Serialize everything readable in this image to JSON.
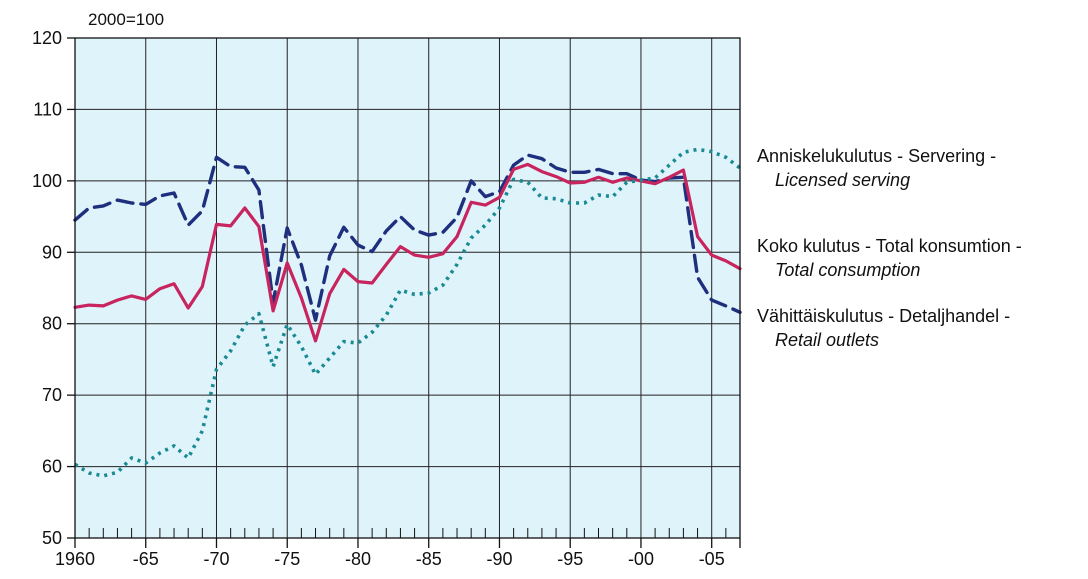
{
  "chart_data": {
    "type": "line",
    "unit_label": "2000=100",
    "ylim": [
      50,
      120
    ],
    "yticks": [
      50,
      60,
      70,
      80,
      90,
      100,
      110,
      120
    ],
    "xlim": [
      1960,
      2007
    ],
    "xticks": [
      {
        "year": 1960,
        "label": "1960"
      },
      {
        "year": 1965,
        "label": "-65"
      },
      {
        "year": 1970,
        "label": "-70"
      },
      {
        "year": 1975,
        "label": "-75"
      },
      {
        "year": 1980,
        "label": "-80"
      },
      {
        "year": 1985,
        "label": "-85"
      },
      {
        "year": 1990,
        "label": "-90"
      },
      {
        "year": 1995,
        "label": "-95"
      },
      {
        "year": 2000,
        "label": "-00"
      },
      {
        "year": 2005,
        "label": "-05"
      }
    ],
    "grid": true,
    "plot_background": "#dff3fb",
    "x": [
      1960,
      1961,
      1962,
      1963,
      1964,
      1965,
      1966,
      1967,
      1968,
      1969,
      1970,
      1971,
      1972,
      1973,
      1974,
      1975,
      1976,
      1977,
      1978,
      1979,
      1980,
      1981,
      1982,
      1983,
      1984,
      1985,
      1986,
      1987,
      1988,
      1989,
      1990,
      1991,
      1992,
      1993,
      1994,
      1995,
      1996,
      1997,
      1998,
      1999,
      2000,
      2001,
      2002,
      2003,
      2004,
      2005,
      2006,
      2007
    ],
    "series": [
      {
        "name": "Anniskelukulutus - Servering -",
        "name_en": "Licensed serving",
        "color": "#1e2f7d",
        "style": "dashed",
        "values": [
          94.5,
          96.2,
          96.5,
          97.3,
          96.9,
          96.7,
          97.9,
          98.3,
          93.8,
          95.8,
          103.3,
          102.0,
          101.9,
          98.7,
          83.0,
          93.4,
          88.2,
          80.5,
          89.5,
          93.5,
          91.0,
          90.1,
          93.0,
          95.0,
          93.1,
          92.4,
          92.8,
          94.9,
          100.0,
          97.8,
          98.5,
          102.2,
          103.6,
          103.1,
          101.8,
          101.2,
          101.2,
          101.6,
          101.0,
          101.0,
          100.1,
          99.9,
          100.4,
          100.5,
          86.5,
          83.3,
          82.5,
          81.6
        ]
      },
      {
        "name": "Koko kulutus - Total konsumtion -",
        "name_en": "Total consumption",
        "color": "#c8245e",
        "style": "solid",
        "values": [
          82.3,
          82.6,
          82.5,
          83.3,
          83.9,
          83.4,
          84.9,
          85.6,
          82.2,
          85.2,
          93.9,
          93.7,
          96.2,
          93.6,
          81.8,
          88.5,
          83.6,
          77.6,
          84.2,
          87.6,
          85.9,
          85.7,
          88.3,
          90.8,
          89.6,
          89.3,
          89.8,
          92.2,
          97.0,
          96.6,
          97.7,
          101.6,
          102.3,
          101.3,
          100.6,
          99.7,
          99.8,
          100.5,
          99.8,
          100.4,
          100.0,
          99.6,
          100.5,
          101.5,
          92.2,
          89.6,
          88.8,
          87.7
        ]
      },
      {
        "name": "Vähittäiskulutus - Detaljhandel -",
        "name_en": "Retail outlets",
        "color": "#1a8a92",
        "style": "dotted",
        "values": [
          60.3,
          59.1,
          58.7,
          59.2,
          61.2,
          60.5,
          61.9,
          62.9,
          61.2,
          65.0,
          73.6,
          76.2,
          79.8,
          81.4,
          74.0,
          79.9,
          76.8,
          72.9,
          75.2,
          77.5,
          77.3,
          78.8,
          81.2,
          84.7,
          84.1,
          84.3,
          85.4,
          88.3,
          92.0,
          93.8,
          96.2,
          100.2,
          99.8,
          97.6,
          97.5,
          96.9,
          96.9,
          98.0,
          97.8,
          99.8,
          100.1,
          100.4,
          102.2,
          104.0,
          104.4,
          104.1,
          103.3,
          101.8
        ]
      }
    ]
  }
}
